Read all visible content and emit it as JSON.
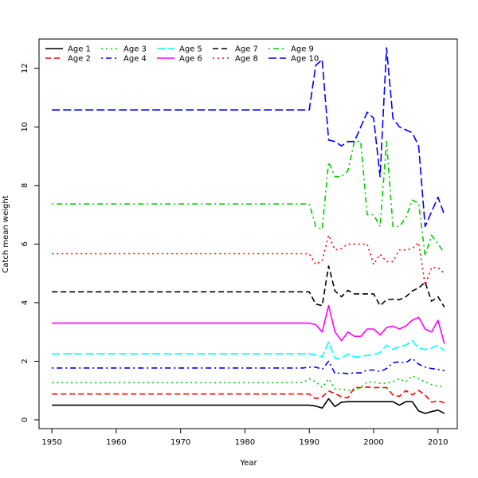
{
  "chart_data": {
    "type": "line",
    "title": "",
    "xlabel": "Year",
    "ylabel": "Catch mean weight",
    "xlim": [
      1948,
      2013
    ],
    "ylim": [
      -0.3,
      13.0
    ],
    "xticks": [
      1950,
      1960,
      1970,
      1980,
      1990,
      2000,
      2010
    ],
    "yticks": [
      0,
      2,
      4,
      6,
      8,
      10,
      12
    ],
    "grid": false,
    "legend_position": "top-left",
    "x": [
      1950,
      1951,
      1952,
      1953,
      1954,
      1955,
      1956,
      1957,
      1958,
      1959,
      1960,
      1961,
      1962,
      1963,
      1964,
      1965,
      1966,
      1967,
      1968,
      1969,
      1970,
      1971,
      1972,
      1973,
      1974,
      1975,
      1976,
      1977,
      1978,
      1979,
      1980,
      1981,
      1982,
      1983,
      1984,
      1985,
      1986,
      1987,
      1988,
      1989,
      1990,
      1991,
      1992,
      1993,
      1994,
      1995,
      1996,
      1997,
      1998,
      1999,
      2000,
      2001,
      2002,
      2003,
      2004,
      2005,
      2006,
      2007,
      2008,
      2009,
      2010,
      2011
    ],
    "series": [
      {
        "name": "Age 1",
        "color": "#000000",
        "dash": "solid",
        "base": 0.5,
        "tail": [
          0.5,
          0.47,
          0.4,
          0.72,
          0.45,
          0.6,
          0.62,
          0.62,
          0.62,
          0.62,
          0.62,
          0.62,
          0.62,
          0.62,
          0.5,
          0.62,
          0.62,
          0.3,
          0.22,
          0.28,
          0.33,
          0.22
        ]
      },
      {
        "name": "Age 2",
        "color": "#ff0000",
        "dash": "dashed",
        "base": 0.88,
        "tail": [
          0.88,
          0.72,
          0.78,
          0.98,
          0.9,
          0.78,
          0.75,
          1.1,
          1.1,
          1.12,
          1.1,
          1.1,
          1.1,
          0.85,
          0.8,
          1.0,
          0.85,
          1.0,
          0.85,
          0.6,
          0.65,
          0.58
        ]
      },
      {
        "name": "Age 3",
        "color": "#00cd00",
        "dash": "dotted",
        "base": 1.27,
        "tail": [
          1.4,
          1.3,
          1.1,
          1.4,
          1.05,
          1.05,
          1.0,
          1.0,
          1.1,
          1.3,
          1.28,
          1.25,
          1.25,
          1.3,
          1.4,
          1.3,
          1.5,
          1.4,
          1.3,
          1.2,
          1.15,
          1.13
        ]
      },
      {
        "name": "Age 4",
        "color": "#0000ff",
        "dash": "dotdash",
        "base": 1.77,
        "tail": [
          1.8,
          1.8,
          1.72,
          2.0,
          1.58,
          1.6,
          1.58,
          1.6,
          1.6,
          1.7,
          1.7,
          1.65,
          1.75,
          1.95,
          1.98,
          1.95,
          2.1,
          1.9,
          1.8,
          1.75,
          1.72,
          1.68
        ]
      },
      {
        "name": "Age 5",
        "color": "#00ffff",
        "dash": "longdash",
        "base": 2.25,
        "tail": [
          2.25,
          2.22,
          2.15,
          2.65,
          2.1,
          2.1,
          2.25,
          2.15,
          2.15,
          2.2,
          2.22,
          2.3,
          2.55,
          2.4,
          2.5,
          2.55,
          2.7,
          2.45,
          2.4,
          2.45,
          2.55,
          2.35
        ]
      },
      {
        "name": "Age 6",
        "color": "#ff00ff",
        "dash": "solid",
        "base": 3.3,
        "tail": [
          3.3,
          3.25,
          3.0,
          3.9,
          3.0,
          2.7,
          3.0,
          2.85,
          2.85,
          3.1,
          3.1,
          2.9,
          3.15,
          3.2,
          3.1,
          3.2,
          3.4,
          3.5,
          3.1,
          3.0,
          3.4,
          2.6
        ]
      },
      {
        "name": "Age 7",
        "color": "#000000",
        "dash": "dashed",
        "base": 4.37,
        "tail": [
          4.37,
          3.95,
          3.9,
          5.25,
          4.4,
          4.2,
          4.42,
          4.3,
          4.3,
          4.3,
          4.3,
          3.9,
          4.1,
          4.12,
          4.1,
          4.2,
          4.4,
          4.5,
          4.7,
          4.05,
          4.2,
          3.85
        ]
      },
      {
        "name": "Age 8",
        "color": "#ff0000",
        "dash": "dotted",
        "base": 5.67,
        "tail": [
          5.67,
          5.3,
          5.45,
          6.3,
          5.8,
          5.85,
          6.0,
          6.0,
          6.0,
          6.0,
          5.3,
          5.65,
          5.4,
          5.4,
          5.8,
          5.8,
          5.85,
          6.05,
          4.6,
          5.2,
          5.2,
          5.0
        ]
      },
      {
        "name": "Age 9",
        "color": "#00cd00",
        "dash": "dotdash",
        "base": 7.37,
        "tail": [
          7.37,
          6.6,
          6.5,
          8.8,
          8.3,
          8.3,
          8.5,
          9.5,
          9.5,
          7.0,
          7.0,
          6.6,
          9.5,
          6.6,
          6.6,
          6.9,
          7.5,
          7.4,
          5.6,
          6.3,
          6.0,
          5.7
        ]
      },
      {
        "name": "Age 10",
        "color": "#0000ff",
        "dash": "longdash",
        "base": 10.58,
        "tail": [
          10.58,
          12.1,
          12.3,
          9.55,
          9.5,
          9.35,
          9.5,
          9.5,
          10.0,
          10.5,
          10.3,
          8.3,
          12.7,
          10.3,
          10.0,
          9.9,
          9.8,
          9.35,
          6.6,
          7.1,
          7.6,
          7.0
        ]
      }
    ]
  }
}
